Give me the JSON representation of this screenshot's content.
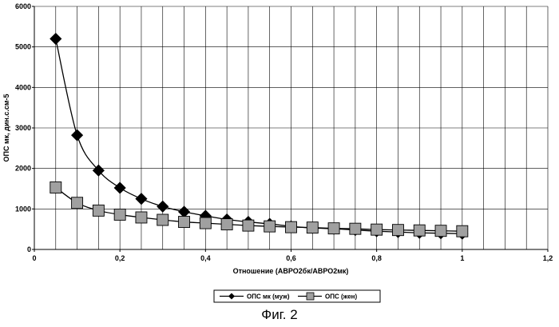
{
  "chart_data": {
    "type": "line",
    "title": "",
    "xlabel": "Отношение (АВРО2бк/АВРО2мк)",
    "ylabel": "ОПС мк, дин.с.см-5",
    "xlim": [
      0,
      1.2
    ],
    "ylim": [
      0,
      6000
    ],
    "x_ticks": [
      "0",
      "0,2",
      "0,4",
      "0,6",
      "0,8",
      "1",
      "1,2"
    ],
    "y_ticks": [
      "0",
      "1000",
      "2000",
      "3000",
      "4000",
      "5000",
      "6000"
    ],
    "grid": true,
    "legend_position": "bottom-center",
    "series": [
      {
        "name": "ОПС мк (муж)",
        "marker": "diamond",
        "color": "#000000",
        "x": [
          0.05,
          0.1,
          0.15,
          0.2,
          0.25,
          0.3,
          0.35,
          0.4,
          0.45,
          0.5,
          0.55,
          0.6,
          0.65,
          0.7,
          0.75,
          0.8,
          0.85,
          0.9,
          0.95,
          1.0
        ],
        "y": [
          5200,
          2820,
          1950,
          1520,
          1250,
          1060,
          930,
          830,
          740,
          680,
          630,
          570,
          530,
          510,
          480,
          450,
          430,
          410,
          400,
          390
        ]
      },
      {
        "name": "ОПС (жен)",
        "marker": "square",
        "color": "#a0a0a0",
        "x": [
          0.05,
          0.1,
          0.15,
          0.2,
          0.25,
          0.3,
          0.35,
          0.4,
          0.45,
          0.5,
          0.55,
          0.6,
          0.65,
          0.7,
          0.75,
          0.8,
          0.85,
          0.9,
          0.95,
          1.0
        ],
        "y": [
          1530,
          1150,
          960,
          860,
          790,
          730,
          680,
          650,
          620,
          590,
          570,
          550,
          540,
          520,
          510,
          490,
          480,
          470,
          460,
          450
        ]
      }
    ]
  },
  "caption": "Фиг. 2"
}
